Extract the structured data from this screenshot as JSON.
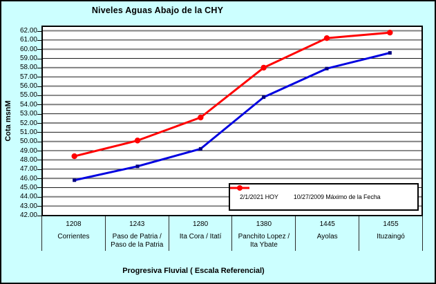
{
  "chart_data": {
    "type": "line",
    "title": "Niveles Aguas Abajo de la CHY",
    "xlabel": "Progresiva Fluvial ( Escala Referencial)",
    "ylabel": "Cota msnM",
    "ylim": [
      42,
      62
    ],
    "ytick_step": 1,
    "yticks": [
      "62.00",
      "61.00",
      "60.00",
      "59.00",
      "58.00",
      "57.00",
      "56.00",
      "55.00",
      "54.00",
      "53.00",
      "52.00",
      "51.00",
      "50.00",
      "49.00",
      "48.00",
      "47.00",
      "46.00",
      "45.00",
      "44.00",
      "43.00",
      "42.00"
    ],
    "grid": "horizontal-major",
    "legend_position": "inside-bottom-right",
    "categories": [
      {
        "progresiva": "1208",
        "name": "Corrientes"
      },
      {
        "progresiva": "1243",
        "name": "Paso de Patria / Paso de la Patria"
      },
      {
        "progresiva": "1280",
        "name": "Ita Cora / Itatí"
      },
      {
        "progresiva": "1380",
        "name": "Panchito Lopez / Ita Ybate"
      },
      {
        "progresiva": "1445",
        "name": "Ayolas"
      },
      {
        "progresiva": "1455",
        "name": "Ituzaingó"
      }
    ],
    "series": [
      {
        "name": "2/1/2021 HOY",
        "marker": "square",
        "line_color": "#0000E0",
        "marker_color": "#000080",
        "values": [
          45.8,
          47.3,
          49.2,
          54.8,
          57.9,
          59.6
        ]
      },
      {
        "name": "10/27/2009 Máximo de la Fecha",
        "marker": "circle",
        "line_color": "#FF0000",
        "marker_color": "#FF0000",
        "values": [
          48.4,
          50.1,
          52.6,
          58.0,
          61.2,
          61.8
        ]
      }
    ],
    "colors": {
      "background": "#CCFFFF",
      "plot_background": "#FFFFFF",
      "gridline_even": "#808080",
      "gridline_odd": "#1A1A1A",
      "text": "#000000",
      "border": "#000000"
    }
  }
}
